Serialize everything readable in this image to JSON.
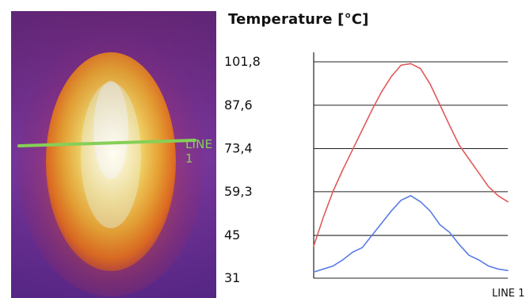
{
  "thermal_image": {
    "line_label": "LINE 1",
    "line_color": "#86cf57"
  },
  "chart_data": {
    "type": "line",
    "title": "Temperature [°C]",
    "xlabel": "LINE 1",
    "ylabel": "",
    "ylim": [
      31,
      101.8
    ],
    "yticks": [
      "101,8",
      "87,6",
      "73,4",
      "59,3",
      "45",
      "31"
    ],
    "grid": true,
    "x": [
      0,
      5,
      10,
      15,
      20,
      25,
      30,
      35,
      40,
      45,
      50,
      55,
      60,
      65,
      70,
      75,
      80,
      85,
      90,
      95,
      100
    ],
    "series": [
      {
        "color": "#e05a5a",
        "values": [
          41.5,
          51.0,
          59.5,
          66.5,
          73.0,
          79.5,
          86.0,
          92.0,
          97.0,
          100.7,
          101.2,
          99.6,
          94.5,
          87.8,
          81.0,
          74.5,
          70.0,
          65.5,
          61.0,
          58.0,
          56.0
        ]
      },
      {
        "color": "#5b7be6",
        "values": [
          33.0,
          34.0,
          35.0,
          37.0,
          39.5,
          41.0,
          45.0,
          49.0,
          53.0,
          56.5,
          58.0,
          56.0,
          53.0,
          48.5,
          46.0,
          42.0,
          38.5,
          37.0,
          35.0,
          34.0,
          33.5
        ]
      }
    ]
  }
}
